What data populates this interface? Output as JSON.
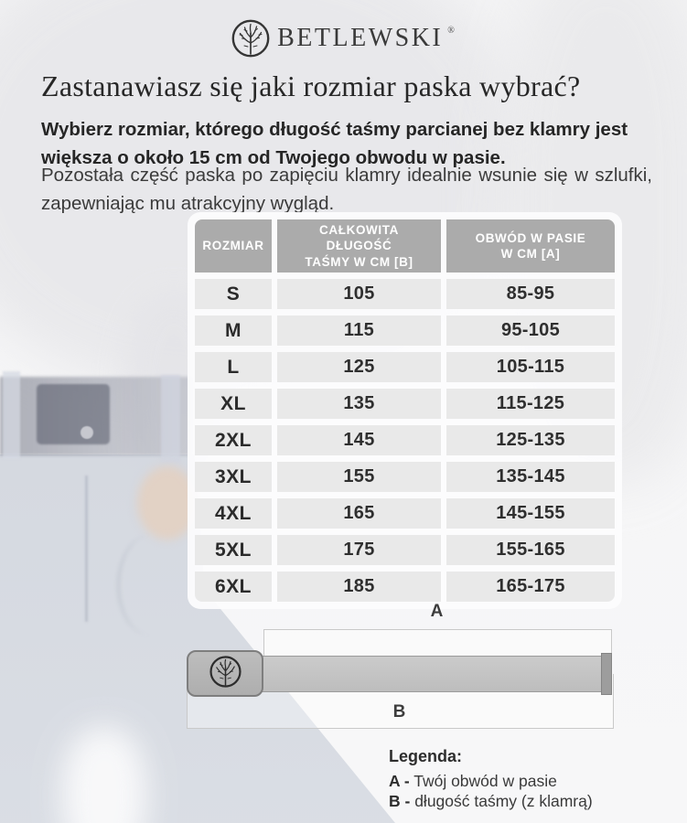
{
  "brand": {
    "name": "BETLEWSKI",
    "reg": "®",
    "logo_icon": "tree-in-circle-icon"
  },
  "intro": {
    "heading": "Zastanawiasz się jaki rozmiar paska wybrać?",
    "bold_text": "Wybierz rozmiar, którego długość taśmy parcianej bez klamry jest większa o około 15 cm od Twojego obwodu w pasie.",
    "body_text": "Pozostała część paska po zapięciu klamry idealnie wsunie się w szlufki, zapewniając mu atrakcyjny wygląd."
  },
  "table": {
    "headers": [
      "ROZMIAR",
      "CAŁKOWITA\nDŁUGOŚĆ\nTAŚMY W CM [B]",
      "OBWÓD W PASIE\nW CM [A]"
    ],
    "rows": [
      {
        "size": "S",
        "length": "105",
        "waist": "85-95"
      },
      {
        "size": "M",
        "length": "115",
        "waist": "95-105"
      },
      {
        "size": "L",
        "length": "125",
        "waist": "105-115"
      },
      {
        "size": "XL",
        "length": "135",
        "waist": "115-125"
      },
      {
        "size": "2XL",
        "length": "145",
        "waist": "125-135"
      },
      {
        "size": "3XL",
        "length": "155",
        "waist": "135-145"
      },
      {
        "size": "4XL",
        "length": "165",
        "waist": "145-155"
      },
      {
        "size": "5XL",
        "length": "175",
        "waist": "155-165"
      },
      {
        "size": "6XL",
        "length": "185",
        "waist": "165-175"
      }
    ],
    "colors": {
      "header_bg": "#ababab",
      "header_text": "#ffffff",
      "row_bg": "#e9e9e9"
    }
  },
  "diagram": {
    "label_a": "A",
    "label_b": "B",
    "buckle_icon": "tree-in-circle-icon",
    "colors": {
      "strap": "#c4c4c4",
      "buckle": "#b5b5b5",
      "bracket": "#c9c9c9"
    }
  },
  "legend": {
    "title": "Legenda:",
    "items": [
      {
        "key": "A -",
        "text": "Twój obwód w pasie"
      },
      {
        "key": "B -",
        "text": "długość taśmy (z klamrą)"
      }
    ]
  }
}
